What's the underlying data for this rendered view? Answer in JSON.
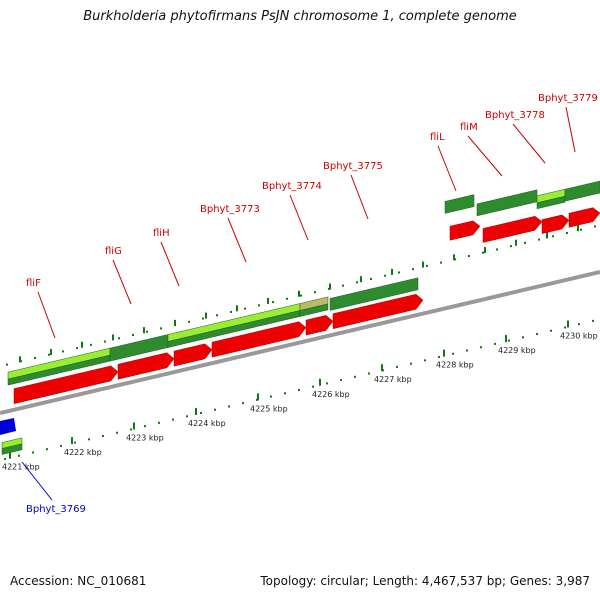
{
  "title": "Burkholderia phytofirmans PsJN chromosome 1, complete genome",
  "footer": {
    "accession": "Accession: NC_010681",
    "summary": "Topology: circular; Length: 4,467,537 bp; Genes: 3,987"
  },
  "colors": {
    "gene_arrow": "#ee0000",
    "cds_dark": "#2e8b2e",
    "cds_light": "#99ee33",
    "gene_blue": "#0000dd",
    "backbone": "#999999",
    "tick": "#117711",
    "label_red": "#cc0000",
    "label_blue": "#0000cc"
  },
  "kbp_ticks": [
    {
      "label": "4221 kbp",
      "kbp": 4221
    },
    {
      "label": "4222 kbp",
      "kbp": 4222
    },
    {
      "label": "4223 kbp",
      "kbp": 4223
    },
    {
      "label": "4224 kbp",
      "kbp": 4224
    },
    {
      "label": "4225 kbp",
      "kbp": 4225
    },
    {
      "label": "4226 kbp",
      "kbp": 4226
    },
    {
      "label": "4227 kbp",
      "kbp": 4227
    },
    {
      "label": "4228 kbp",
      "kbp": 4228
    },
    {
      "label": "4229 kbp",
      "kbp": 4229
    },
    {
      "label": "4230 kbp",
      "kbp": 4230
    }
  ],
  "genes": [
    {
      "name": "Bphyt_3769",
      "color": "blue"
    },
    {
      "name": "fliF",
      "color": "red"
    },
    {
      "name": "fliG",
      "color": "red"
    },
    {
      "name": "fliH",
      "color": "red"
    },
    {
      "name": "Bphyt_3773",
      "color": "red"
    },
    {
      "name": "Bphyt_3774",
      "color": "red"
    },
    {
      "name": "Bphyt_3775",
      "color": "red"
    },
    {
      "name": "fliL",
      "color": "red"
    },
    {
      "name": "fliM",
      "color": "red"
    },
    {
      "name": "Bphyt_3778",
      "color": "red"
    },
    {
      "name": "Bphyt_3779",
      "color": "red"
    }
  ]
}
